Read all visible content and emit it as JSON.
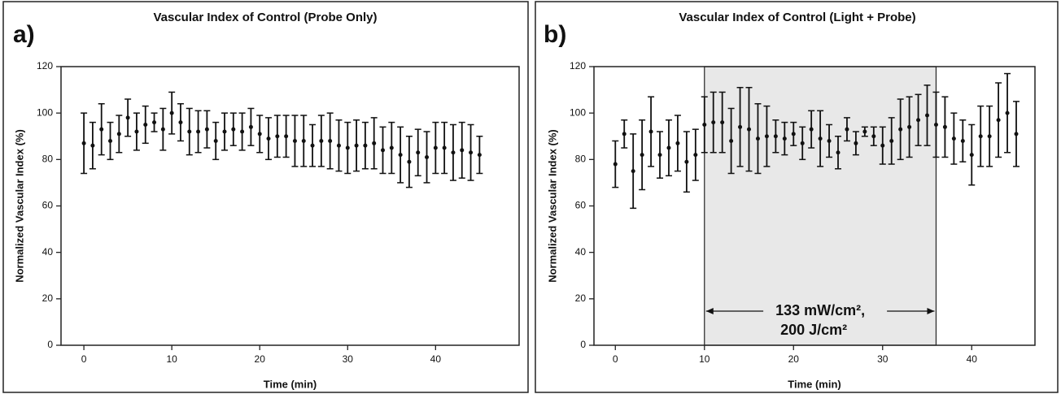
{
  "chart_data": [
    {
      "type": "errorbar",
      "panel_label": "a)",
      "title": "Vascular Index of Control (Probe Only)",
      "xlabel": "Time (min)",
      "ylabel": "Normalized Vascular Index (%)",
      "color": "#111111",
      "x": [
        0,
        1,
        2,
        3,
        4,
        5,
        6,
        7,
        8,
        9,
        10,
        11,
        12,
        13,
        14,
        15,
        16,
        17,
        18,
        19,
        20,
        21,
        22,
        23,
        24,
        25,
        26,
        27,
        28,
        29,
        30,
        31,
        32,
        33,
        34,
        35,
        36,
        37,
        38,
        39,
        40,
        41,
        42,
        43,
        44,
        45
      ],
      "values": [
        87,
        86,
        93,
        88,
        91,
        98,
        92,
        95,
        96,
        93,
        100,
        96,
        92,
        92,
        93,
        88,
        92,
        93,
        92,
        94,
        91,
        89,
        90,
        90,
        88,
        88,
        86,
        88,
        88,
        86,
        85,
        86,
        86,
        87,
        84,
        85,
        82,
        79,
        83,
        81,
        85,
        85,
        83,
        84,
        83,
        82
      ],
      "errors": [
        13,
        10,
        11,
        8,
        8,
        8,
        8,
        8,
        4,
        9,
        9,
        8,
        10,
        9,
        8,
        8,
        8,
        7,
        8,
        8,
        8,
        9,
        9,
        9,
        11,
        11,
        9,
        11,
        12,
        11,
        11,
        11,
        10,
        11,
        10,
        11,
        12,
        11,
        10,
        11,
        11,
        11,
        12,
        12,
        12,
        8
      ],
      "xlim": [
        -2.6,
        49.5
      ],
      "xticks": [
        0,
        10,
        20,
        30,
        40
      ],
      "ylim": [
        0,
        120
      ],
      "yticks": [
        0,
        20,
        40,
        60,
        80,
        100,
        120
      ]
    },
    {
      "type": "errorbar",
      "panel_label": "b)",
      "title": "Vascular Index of Control (Light + Probe)",
      "xlabel": "Time (min)",
      "ylabel": "Normalized Vascular Index (%)",
      "color": "#111111",
      "x": [
        0,
        1,
        2,
        3,
        4,
        5,
        6,
        7,
        8,
        9,
        10,
        11,
        12,
        13,
        14,
        15,
        16,
        17,
        18,
        19,
        20,
        21,
        22,
        23,
        24,
        25,
        26,
        27,
        28,
        29,
        30,
        31,
        32,
        33,
        34,
        35,
        36,
        37,
        38,
        39,
        40,
        41,
        42,
        43,
        44,
        45
      ],
      "values": [
        78,
        91,
        75,
        82,
        92,
        82,
        85,
        87,
        79,
        82,
        95,
        96,
        96,
        88,
        94,
        93,
        89,
        90,
        90,
        89,
        91,
        87,
        93,
        89,
        88,
        83,
        93,
        87,
        92,
        90,
        86,
        88,
        93,
        94,
        97,
        99,
        95,
        94,
        89,
        88,
        82,
        90,
        90,
        97,
        100,
        91
      ],
      "errors": [
        10,
        6,
        16,
        15,
        15,
        10,
        12,
        12,
        13,
        11,
        12,
        13,
        13,
        14,
        17,
        18,
        15,
        13,
        7,
        7,
        5,
        7,
        8,
        12,
        7,
        7,
        5,
        5,
        2,
        4,
        8,
        10,
        13,
        13,
        11,
        13,
        14,
        13,
        11,
        9,
        13,
        13,
        13,
        16,
        17,
        14
      ],
      "xlim": [
        -2.4,
        47.1
      ],
      "xticks": [
        0,
        10,
        20,
        30,
        40
      ],
      "ylim": [
        0,
        120
      ],
      "yticks": [
        0,
        20,
        40,
        60,
        80,
        100,
        120
      ],
      "shaded_region": [
        10,
        36
      ],
      "shade_color": "#e8e8e8",
      "annotation": [
        "133 mW/cm²,",
        "200 J/cm²"
      ]
    }
  ]
}
